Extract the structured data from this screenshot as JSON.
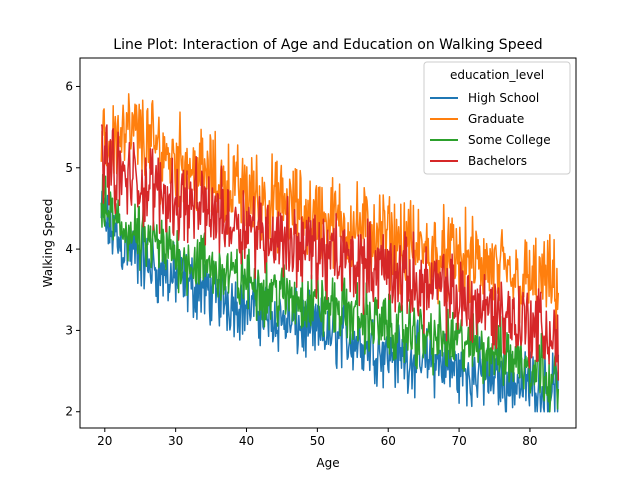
{
  "chart_data": {
    "type": "line",
    "title": "Line Plot: Interaction of Age and Education on Walking Speed",
    "xlabel": "Age",
    "ylabel": "Walking Speed",
    "xlim": [
      16.5,
      86.5
    ],
    "ylim": [
      1.8,
      6.35
    ],
    "xticks": [
      20,
      30,
      40,
      50,
      60,
      70,
      80
    ],
    "yticks": [
      2,
      3,
      4,
      5,
      6
    ],
    "grid": false,
    "legend": {
      "title": "education_level",
      "placement": "top-right"
    },
    "x": [
      19.5,
      22,
      25,
      28,
      31,
      34,
      37,
      40,
      43,
      46,
      49,
      52,
      55,
      58,
      61,
      64,
      67,
      70,
      73,
      76,
      79,
      82,
      84
    ],
    "series": [
      {
        "name": "High School",
        "color": "#1f77b4",
        "values": [
          4.4,
          4.1,
          3.9,
          3.7,
          3.6,
          3.5,
          3.4,
          3.3,
          3.2,
          3.1,
          3.0,
          2.95,
          2.9,
          2.8,
          2.7,
          2.65,
          2.6,
          2.5,
          2.45,
          2.4,
          2.35,
          2.3,
          2.3
        ],
        "spread": 0.32
      },
      {
        "name": "Graduate",
        "color": "#ff7f0e",
        "values": [
          5.2,
          5.45,
          5.4,
          5.2,
          5.1,
          4.9,
          4.8,
          4.7,
          4.6,
          4.5,
          4.45,
          4.35,
          4.3,
          4.2,
          4.1,
          4.0,
          3.95,
          3.9,
          3.8,
          3.7,
          3.6,
          3.6,
          3.5
        ],
        "spread": 0.42
      },
      {
        "name": "Some College",
        "color": "#2ca02c",
        "values": [
          4.5,
          4.3,
          4.1,
          4.0,
          3.9,
          3.8,
          3.7,
          3.6,
          3.5,
          3.4,
          3.35,
          3.3,
          3.2,
          3.1,
          3.0,
          2.95,
          2.9,
          2.85,
          2.8,
          2.7,
          2.6,
          2.55,
          2.3
        ],
        "spread": 0.32
      },
      {
        "name": "Bachelors",
        "color": "#d62728",
        "values": [
          5.2,
          4.9,
          4.8,
          4.7,
          4.6,
          4.5,
          4.4,
          4.3,
          4.2,
          4.1,
          4.0,
          3.9,
          3.85,
          3.8,
          3.7,
          3.6,
          3.5,
          3.4,
          3.3,
          3.2,
          3.1,
          3.0,
          2.8
        ],
        "spread": 0.4
      }
    ]
  }
}
